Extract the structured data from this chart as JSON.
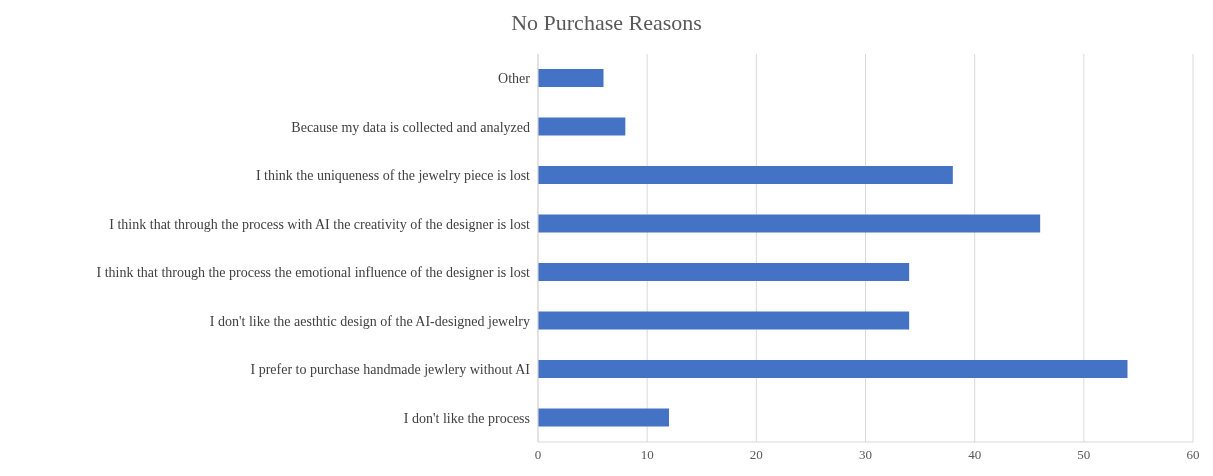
{
  "chart_data": {
    "type": "bar",
    "orientation": "horizontal",
    "title": "No Purchase Reasons",
    "categories": [
      "Other",
      "Because my data is collected and analyzed",
      "I think the uniqueness of the jewelry piece is lost",
      "I think that through the process with AI the creativity of the designer is lost",
      "I think that through the process the emotional influence of the designer is lost",
      "I don't like the aesthtic design of the AI-designed jewelry",
      "I prefer to purchase handmade jewlery without AI",
      "I don't like the process"
    ],
    "values": [
      6,
      8,
      38,
      46,
      34,
      34,
      54,
      12
    ],
    "color": "#4472c4",
    "xlim": [
      0,
      60
    ],
    "xticks": [
      0,
      10,
      20,
      30,
      40,
      50,
      60
    ],
    "grid": "x"
  }
}
